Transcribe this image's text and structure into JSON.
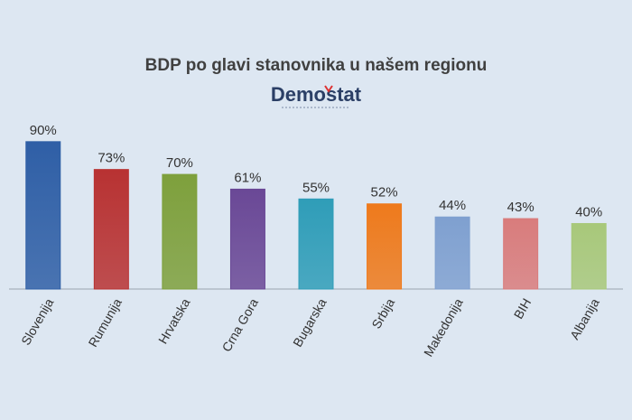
{
  "chart_data": {
    "type": "bar",
    "title": "BDP po glavi stanovnika u našem regionu",
    "logo_text": "Demostat",
    "categories": [
      "Slovenija",
      "Rumunija",
      "Hrvatska",
      "Crna Gora",
      "Bugarska",
      "Srbija",
      "Makedonija",
      "BIH",
      "Albanija"
    ],
    "values": [
      90,
      73,
      70,
      61,
      55,
      52,
      44,
      43,
      40
    ],
    "value_labels": [
      "90%",
      "73%",
      "70%",
      "61%",
      "55%",
      "52%",
      "44%",
      "43%",
      "40%"
    ],
    "colors": [
      "#2f5fa6",
      "#b83232",
      "#7ea03c",
      "#6a4896",
      "#2f9db8",
      "#ee7a1c",
      "#7fa0d0",
      "#d97c7c",
      "#a8c87a"
    ],
    "ylim": [
      0,
      100
    ],
    "grid": false,
    "legend": "none"
  }
}
